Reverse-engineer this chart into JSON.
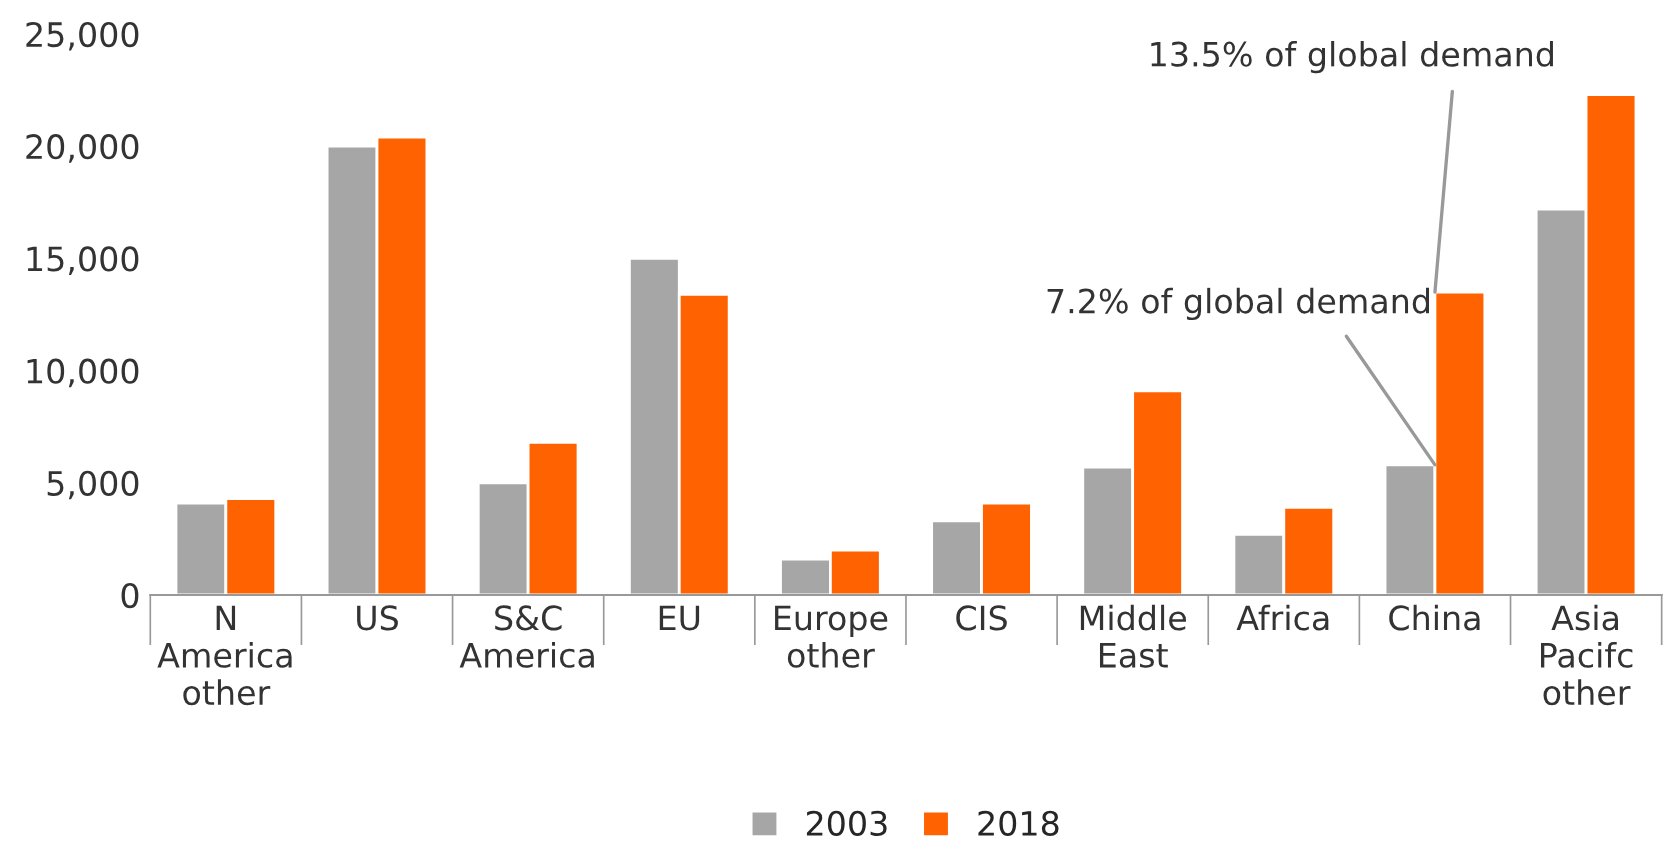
{
  "chart_data": {
    "type": "bar",
    "categories": [
      "N\nAmerica\nother",
      "US",
      "S&C\nAmerica",
      "EU",
      "Europe\nother",
      "CIS",
      "Middle\nEast",
      "Africa",
      "China",
      "Asia\nPacifc\nother"
    ],
    "series": [
      {
        "name": "2003",
        "color": "#a6a6a6",
        "values": [
          4100,
          20000,
          5000,
          15000,
          1600,
          3300,
          5700,
          2700,
          5800,
          17200
        ]
      },
      {
        "name": "2018",
        "color": "#ff6200",
        "values": [
          4300,
          20400,
          6800,
          13400,
          2000,
          4100,
          9100,
          3900,
          13500,
          22300
        ]
      }
    ],
    "ylim": [
      0,
      25000
    ],
    "yticks": [
      {
        "value": 0,
        "label": "0"
      },
      {
        "value": 5000,
        "label": "5,000"
      },
      {
        "value": 10000,
        "label": "10,000"
      },
      {
        "value": 15000,
        "label": "15,000"
      },
      {
        "value": 20000,
        "label": "20,000"
      },
      {
        "value": 25000,
        "label": "25,000"
      }
    ],
    "annotations": [
      {
        "text": "13.5% of global demand",
        "x": "China",
        "y": 13500
      },
      {
        "text": "7.2% of global demand",
        "x": "China",
        "y": 5800
      }
    ],
    "grid": false,
    "legend": "bottom"
  }
}
